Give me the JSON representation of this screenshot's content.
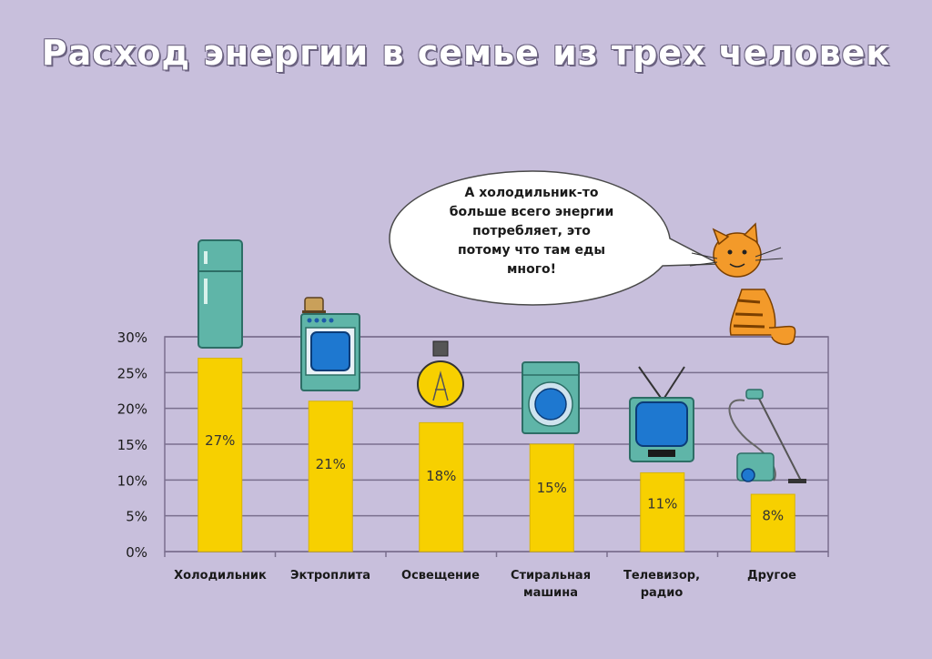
{
  "title": "Расход энергии в семье из трех человек",
  "speech_bubble": {
    "lines": [
      "А холодильник-то",
      "больше всего энергии",
      "потребляет, это",
      "потому что там еды",
      "много!"
    ]
  },
  "chart_data": {
    "type": "bar",
    "title": "Расход энергии в семье из трех человек",
    "categories": [
      "Холодильник",
      "Эктроплита",
      "Освещение",
      "Стиральная машина",
      "Телевизор, радио",
      "Другое"
    ],
    "category_lines": [
      [
        "Холодильник"
      ],
      [
        "Эктроплита"
      ],
      [
        "Освещение"
      ],
      [
        "Стиральная",
        "машина"
      ],
      [
        "Телевизор,",
        "радио"
      ],
      [
        "Другое"
      ]
    ],
    "values": [
      27,
      21,
      18,
      15,
      11,
      8
    ],
    "data_labels": [
      "27%",
      "21%",
      "18%",
      "15%",
      "11%",
      "8%"
    ],
    "ylim": [
      0,
      30
    ],
    "yticks": [
      "0%",
      "5%",
      "10%",
      "15%",
      "20%",
      "25%",
      "30%"
    ],
    "grid": true,
    "colors": {
      "bar": "#f7d000",
      "bar_edge": "#d8b400",
      "grid": "#7a6f8e",
      "background": "#c8bfdc"
    }
  }
}
